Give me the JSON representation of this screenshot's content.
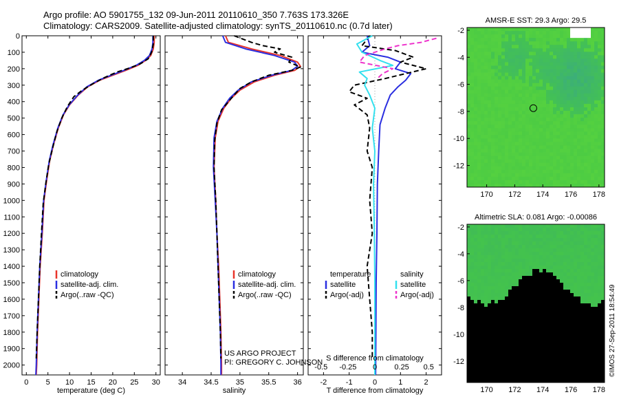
{
  "header": {
    "title_line1": "Argo profile: AO 5901755_132 09-Jun-2011 20110610_350 7.763S 173.326E",
    "title_line2": "Climatology: CARS2009. Satellite-adjusted climatology: synTS_20110610.nc (0.7d later)"
  },
  "credits": {
    "project": "US ARGO PROJECT",
    "pi": "PI: GREGORY C. JOHNSON",
    "imos": "©IMOS 27-Sep-2011 18:54:49"
  },
  "colors": {
    "climatology": "#e8342a",
    "satellite": "#2a2ee0",
    "argo": "#000000",
    "sal_satellite": "#33e0ee",
    "sal_argo": "#ee33cc"
  },
  "chart_data": [
    {
      "id": "temperature",
      "type": "line",
      "xlabel": "temperature (deg C)",
      "ylabel": "",
      "xlim": [
        -1,
        31
      ],
      "ylim": [
        2060,
        0
      ],
      "xticks": [
        0,
        5,
        10,
        15,
        20,
        25,
        30
      ],
      "yticks": [
        0,
        100,
        200,
        300,
        400,
        500,
        600,
        700,
        800,
        900,
        1000,
        1100,
        1200,
        1300,
        1400,
        1500,
        1600,
        1700,
        1800,
        1900,
        2000
      ],
      "legend": [
        "climatology",
        "satellite-adj. clim.",
        "Argo(..raw -QC)"
      ],
      "series": [
        {
          "name": "climatology",
          "style": "clim",
          "points": [
            [
              29.6,
              0
            ],
            [
              29.6,
              40
            ],
            [
              29.4,
              80
            ],
            [
              28.8,
              120
            ],
            [
              27.6,
              150
            ],
            [
              25.8,
              180
            ],
            [
              23.0,
              210
            ],
            [
              20.0,
              240
            ],
            [
              17.0,
              270
            ],
            [
              14.2,
              310
            ],
            [
              12.0,
              360
            ],
            [
              10.0,
              420
            ],
            [
              8.6,
              480
            ],
            [
              7.4,
              560
            ],
            [
              6.3,
              660
            ],
            [
              5.4,
              760
            ],
            [
              4.7,
              880
            ],
            [
              4.1,
              1000
            ],
            [
              3.7,
              1200
            ],
            [
              3.2,
              1400
            ],
            [
              2.9,
              1600
            ],
            [
              2.6,
              1800
            ],
            [
              2.4,
              2000
            ],
            [
              2.3,
              2060
            ]
          ]
        },
        {
          "name": "satellite-adj. clim.",
          "style": "sat",
          "points": [
            [
              29.3,
              0
            ],
            [
              29.3,
              40
            ],
            [
              29.1,
              80
            ],
            [
              28.5,
              120
            ],
            [
              27.3,
              150
            ],
            [
              25.4,
              180
            ],
            [
              22.6,
              210
            ],
            [
              19.6,
              240
            ],
            [
              16.7,
              270
            ],
            [
              14.0,
              310
            ],
            [
              11.9,
              360
            ],
            [
              9.9,
              420
            ],
            [
              8.5,
              480
            ],
            [
              7.3,
              560
            ],
            [
              6.2,
              660
            ],
            [
              5.3,
              760
            ],
            [
              4.6,
              880
            ],
            [
              4.0,
              1000
            ],
            [
              3.6,
              1200
            ],
            [
              3.1,
              1400
            ],
            [
              2.8,
              1600
            ],
            [
              2.5,
              1800
            ],
            [
              2.3,
              2000
            ],
            [
              2.2,
              2060
            ]
          ]
        },
        {
          "name": "Argo(..raw -QC)",
          "style": "argo",
          "points": [
            [
              29.4,
              0
            ],
            [
              29.4,
              50
            ],
            [
              29.0,
              100
            ],
            [
              28.2,
              140
            ],
            [
              26.4,
              170
            ],
            [
              24.0,
              195
            ],
            [
              21.0,
              220
            ],
            [
              18.0,
              255
            ],
            [
              15.5,
              290
            ],
            [
              13.0,
              330
            ],
            [
              11.0,
              370
            ],
            [
              9.5,
              430
            ],
            [
              8.2,
              500
            ],
            [
              7.1,
              580
            ],
            [
              6.1,
              680
            ],
            [
              5.2,
              780
            ],
            [
              4.5,
              900
            ],
            [
              3.9,
              1020
            ],
            [
              3.5,
              1200
            ],
            [
              3.1,
              1400
            ],
            [
              2.8,
              1600
            ],
            [
              2.5,
              1800
            ],
            [
              2.3,
              1960
            ]
          ]
        }
      ]
    },
    {
      "id": "salinity",
      "type": "line",
      "xlabel": "salinity",
      "ylabel": "",
      "xlim": [
        33.7,
        36.1
      ],
      "ylim": [
        2060,
        0
      ],
      "xticks": [
        34,
        34.5,
        35,
        35.5,
        36
      ],
      "xtick_labels": [
        "34",
        "34.5",
        "35",
        "35.5",
        "36"
      ],
      "legend": [
        "climatology",
        "satellite-adj. clim.",
        "Argo(..raw -QC)"
      ],
      "series": [
        {
          "name": "climatology",
          "style": "clim",
          "points": [
            [
              34.75,
              0
            ],
            [
              34.8,
              40
            ],
            [
              35.2,
              80
            ],
            [
              35.7,
              120
            ],
            [
              36.0,
              160
            ],
            [
              36.05,
              185
            ],
            [
              35.95,
              210
            ],
            [
              35.6,
              240
            ],
            [
              35.25,
              280
            ],
            [
              35.0,
              330
            ],
            [
              34.85,
              380
            ],
            [
              34.72,
              440
            ],
            [
              34.62,
              520
            ],
            [
              34.57,
              620
            ],
            [
              34.55,
              800
            ],
            [
              34.58,
              1000
            ],
            [
              34.6,
              1200
            ],
            [
              34.63,
              1400
            ],
            [
              34.65,
              1600
            ],
            [
              34.67,
              1800
            ],
            [
              34.68,
              2000
            ],
            [
              34.68,
              2060
            ]
          ]
        },
        {
          "name": "satellite-adj. clim.",
          "style": "sat",
          "points": [
            [
              34.7,
              0
            ],
            [
              34.75,
              40
            ],
            [
              35.1,
              80
            ],
            [
              35.6,
              120
            ],
            [
              35.95,
              160
            ],
            [
              36.0,
              185
            ],
            [
              35.9,
              210
            ],
            [
              35.55,
              240
            ],
            [
              35.2,
              280
            ],
            [
              34.97,
              330
            ],
            [
              34.82,
              380
            ],
            [
              34.7,
              440
            ],
            [
              34.6,
              520
            ],
            [
              34.55,
              620
            ],
            [
              34.54,
              800
            ],
            [
              34.57,
              1000
            ],
            [
              34.6,
              1200
            ],
            [
              34.62,
              1400
            ],
            [
              34.64,
              1600
            ],
            [
              34.66,
              1800
            ],
            [
              34.67,
              2000
            ],
            [
              34.67,
              2060
            ]
          ]
        },
        {
          "name": "Argo(..raw -QC)",
          "style": "argo",
          "points": [
            [
              34.9,
              0
            ],
            [
              35.2,
              40
            ],
            [
              35.4,
              60
            ],
            [
              35.7,
              80
            ],
            [
              35.6,
              100
            ],
            [
              35.9,
              130
            ],
            [
              35.85,
              160
            ],
            [
              36.05,
              190
            ],
            [
              35.9,
              210
            ],
            [
              35.5,
              240
            ],
            [
              35.2,
              280
            ],
            [
              35.0,
              320
            ],
            [
              34.85,
              380
            ],
            [
              34.68,
              450
            ],
            [
              34.6,
              530
            ],
            [
              34.56,
              640
            ],
            [
              34.55,
              800
            ],
            [
              34.58,
              1000
            ],
            [
              34.6,
              1200
            ],
            [
              34.62,
              1400
            ],
            [
              34.64,
              1600
            ],
            [
              34.66,
              1800
            ],
            [
              34.67,
              1960
            ]
          ]
        }
      ]
    },
    {
      "id": "difference",
      "type": "line",
      "xlabel": "T difference from climatology",
      "x2label": "S difference from climatology",
      "ylabel": "",
      "xlim": [
        -2.6,
        2.6
      ],
      "ylim": [
        2060,
        0
      ],
      "xticks": [
        -2,
        -1,
        0,
        1,
        2
      ],
      "x2ticks": [
        -0.5,
        -0.25,
        0,
        0.25,
        0.5
      ],
      "x2tick_labels": [
        "-0.5",
        "-0.25",
        "0",
        "0.25",
        "0.5"
      ],
      "legend": [
        "temperature",
        "satellite",
        "Argo(-adj)",
        "salinity",
        "satellite",
        "Argo(-adj)"
      ],
      "series": [
        {
          "name": "temperature satellite",
          "style": "sat",
          "points": [
            [
              -0.3,
              0
            ],
            [
              -0.2,
              60
            ],
            [
              -0.5,
              100
            ],
            [
              0.5,
              130
            ],
            [
              1.0,
              160
            ],
            [
              0.8,
              200
            ],
            [
              1.4,
              230
            ],
            [
              1.2,
              270
            ],
            [
              0.9,
              310
            ],
            [
              0.6,
              360
            ],
            [
              0.4,
              440
            ],
            [
              0.2,
              540
            ],
            [
              0.15,
              700
            ],
            [
              0.1,
              900
            ],
            [
              0.08,
              1200
            ],
            [
              0.05,
              1500
            ],
            [
              0.04,
              1800
            ],
            [
              0.03,
              2060
            ]
          ]
        },
        {
          "name": "temperature Argo(-adj)",
          "style": "argo",
          "points": [
            [
              -0.2,
              0
            ],
            [
              -0.5,
              60
            ],
            [
              0.8,
              90
            ],
            [
              1.5,
              130
            ],
            [
              1.0,
              160
            ],
            [
              2.0,
              200
            ],
            [
              1.2,
              230
            ],
            [
              0.4,
              260
            ],
            [
              -0.8,
              300
            ],
            [
              -1.0,
              340
            ],
            [
              -0.3,
              380
            ],
            [
              -0.8,
              420
            ],
            [
              -0.3,
              480
            ],
            [
              -0.2,
              560
            ],
            [
              -0.3,
              700
            ],
            [
              -0.1,
              800
            ],
            [
              -0.2,
              1000
            ],
            [
              -0.1,
              1200
            ],
            [
              -0.3,
              1400
            ],
            [
              -0.2,
              1600
            ],
            [
              -0.1,
              1800
            ],
            [
              -0.1,
              1960
            ]
          ]
        },
        {
          "name": "salinity satellite",
          "style": "sal_sat",
          "points": [
            [
              -0.1,
              0
            ],
            [
              -0.4,
              25
            ],
            [
              -0.7,
              50
            ],
            [
              -0.5,
              100
            ],
            [
              0.2,
              150
            ],
            [
              0.7,
              180
            ],
            [
              -0.6,
              220
            ],
            [
              -0.3,
              260
            ],
            [
              -0.4,
              300
            ],
            [
              -0.2,
              360
            ],
            [
              0.0,
              440
            ],
            [
              -0.1,
              560
            ],
            [
              0.0,
              700
            ],
            [
              -0.05,
              900
            ],
            [
              -0.02,
              1200
            ],
            [
              0.0,
              1500
            ],
            [
              0.0,
              1800
            ],
            [
              0.0,
              2060
            ]
          ]
        },
        {
          "name": "salinity Argo(-adj)",
          "style": "sal_argo",
          "points": [
            [
              2.4,
              15
            ],
            [
              1.8,
              40
            ],
            [
              0.9,
              60
            ],
            [
              0.4,
              80
            ],
            [
              -0.4,
              120
            ],
            [
              -0.6,
              160
            ],
            [
              0.7,
              200
            ],
            [
              0.3,
              230
            ],
            [
              0.1,
              260
            ]
          ]
        }
      ]
    },
    {
      "id": "sst_map",
      "type": "heatmap",
      "title": "AMSR-E SST: 29.3 Argo: 29.5",
      "xlim": [
        168.6,
        178.4
      ],
      "ylim": [
        -13.6,
        -1.8
      ],
      "xticks": [
        170,
        172,
        174,
        176,
        178
      ],
      "yticks": [
        -2,
        -4,
        -6,
        -8,
        -10,
        -12
      ],
      "marker": [
        173.326,
        -7.763
      ]
    },
    {
      "id": "sla_map",
      "type": "heatmap",
      "title": "Altimetric SLA: 0.081 Argo: -0.00086",
      "xlim": [
        168.6,
        178.4
      ],
      "ylim": [
        -13.6,
        -1.8
      ],
      "xticks": [
        170,
        172,
        174,
        176,
        178
      ],
      "yticks": [
        -2,
        -4,
        -6,
        -8,
        -10,
        -12
      ],
      "marker": [
        173.326,
        -7.763
      ]
    }
  ]
}
